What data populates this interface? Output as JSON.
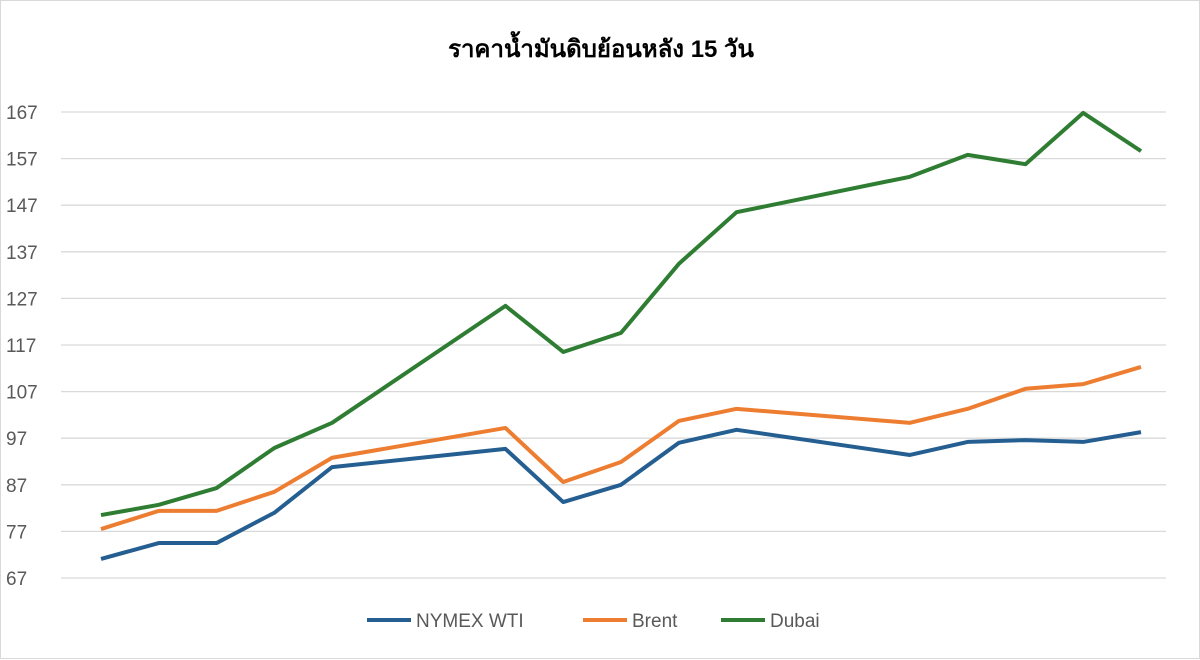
{
  "chart_data": {
    "type": "line",
    "title": "ราคาน้ำมันดิบย้อนหลัง 15 วัน",
    "xlabel": "",
    "ylabel": "",
    "ylim": [
      67,
      167
    ],
    "yticks": [
      "67",
      "77",
      "87",
      "97",
      "107",
      "117",
      "127",
      "137",
      "147",
      "157",
      "167"
    ],
    "grid": true,
    "legend": "bottom",
    "series": [
      {
        "name": "NYMEX WTI",
        "color": "#255e91",
        "values": [
          71.1,
          74.5,
          74.5,
          81.0,
          90.8,
          null,
          null,
          94.7,
          83.3,
          87.0,
          96.0,
          98.8,
          null,
          null,
          93.4,
          96.2,
          96.6,
          96.2,
          98.3
        ]
      },
      {
        "name": "Brent",
        "color": "#ed7d31",
        "values": [
          77.5,
          81.4,
          81.4,
          85.5,
          92.8,
          null,
          null,
          99.2,
          87.6,
          91.9,
          100.7,
          103.3,
          null,
          null,
          100.3,
          103.3,
          107.6,
          108.6,
          112.3
        ]
      },
      {
        "name": "Dubai",
        "color": "#2e7d32",
        "values": [
          80.5,
          82.7,
          86.3,
          94.9,
          100.3,
          null,
          null,
          125.4,
          115.5,
          119.6,
          134.4,
          145.5,
          null,
          null,
          153.1,
          157.8,
          155.8,
          166.8,
          158.6
        ]
      }
    ]
  }
}
